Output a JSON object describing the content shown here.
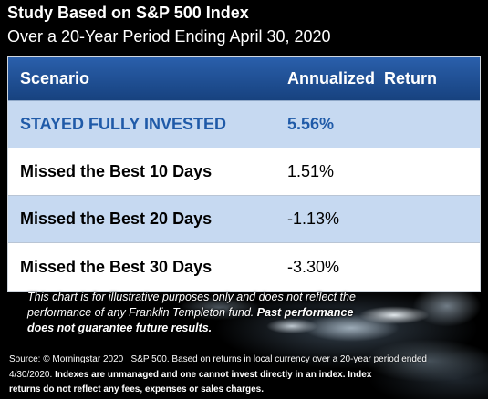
{
  "colors": {
    "page_bg": "#000000",
    "header_bg_top": "#2a5fab",
    "header_bg_bottom": "#17427f",
    "row_alt_bg": "#c6d9f1",
    "row_bg": "#ffffff",
    "highlight_text": "#1f5aa8"
  },
  "chart_data": {
    "type": "table",
    "title": "Study Based on S&P 500 Index",
    "subtitle": "Over a 20-Year Period Ending April 30, 2020",
    "columns": [
      "Scenario",
      "Annualized  Return"
    ],
    "rows": [
      {
        "scenario": "STAYED FULLY INVESTED",
        "annualized_return": "5.56%"
      },
      {
        "scenario": "Missed the Best 10 Days",
        "annualized_return": "1.51%"
      },
      {
        "scenario": "Missed the Best 20 Days",
        "annualized_return": "-1.13%"
      },
      {
        "scenario": "Missed the Best 30 Days",
        "annualized_return": "-3.30%"
      }
    ]
  },
  "disclaimer": {
    "line1": "This chart is for illustrative purposes only and does not reflect the",
    "line2": "performance of any Franklin Templeton fund.",
    "bold_line2": "Past performance",
    "bold_line3": "does not guarantee future results."
  },
  "source": {
    "line1": "Source: © Morningstar 2020   S&P 500. Based on returns in local currency over a 20-year period ended",
    "line2_start": "4/30/2020.",
    "bold_line2": "Indexes are unmanaged and one cannot invest directly in an index. Index",
    "bold_line3": "returns do not reflect any fees, expenses or sales charges."
  }
}
